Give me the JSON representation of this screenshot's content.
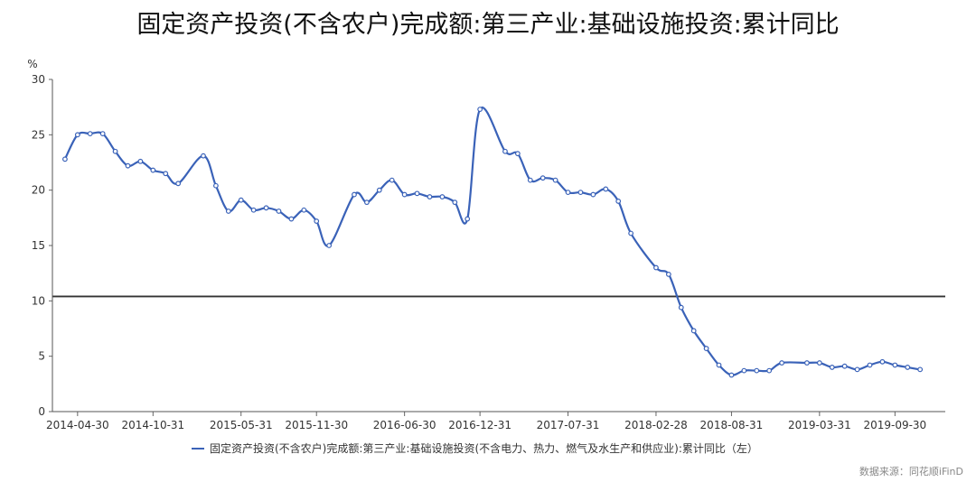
{
  "chart_data": {
    "type": "line",
    "title": "固定资产投资(不含农户)完成额:第三产业:基础设施投资:累计同比",
    "ylabel": "%",
    "ylim": [
      0,
      30
    ],
    "yticks": [
      0,
      5,
      10,
      15,
      20,
      25,
      30
    ],
    "x_tick_labels": [
      "2014-04-30",
      "2014-10-31",
      "2015-05-31",
      "2015-11-30",
      "2016-06-30",
      "2016-12-31",
      "2017-07-31",
      "2018-02-28",
      "2018-08-31",
      "2019-03-31",
      "2019-09-30"
    ],
    "legend_position": "bottom",
    "reference_line": 10.4,
    "series": [
      {
        "name": "固定资产投资(不含农户)完成额:第三产业:基础设施投资(不含电力、热力、燃气及水生产和供应业):累计同比（左）",
        "color": "#3a62b8",
        "x": [
          "2014-03",
          "2014-04",
          "2014-05",
          "2014-06",
          "2014-07",
          "2014-08",
          "2014-09",
          "2014-10",
          "2014-11",
          "2014-12",
          "2015-02",
          "2015-03",
          "2015-04",
          "2015-05",
          "2015-06",
          "2015-07",
          "2015-08",
          "2015-09",
          "2015-10",
          "2015-11",
          "2015-12",
          "2016-02",
          "2016-03",
          "2016-04",
          "2016-05",
          "2016-06",
          "2016-07",
          "2016-08",
          "2016-09",
          "2016-10",
          "2016-11",
          "2016-12",
          "2017-02",
          "2017-03",
          "2017-04",
          "2017-05",
          "2017-06",
          "2017-07",
          "2017-08",
          "2017-09",
          "2017-10",
          "2017-11",
          "2017-12",
          "2018-02",
          "2018-03",
          "2018-04",
          "2018-05",
          "2018-06",
          "2018-07",
          "2018-08",
          "2018-09",
          "2018-10",
          "2018-11",
          "2018-12",
          "2019-02",
          "2019-03",
          "2019-04",
          "2019-05",
          "2019-06",
          "2019-07",
          "2019-08",
          "2019-09",
          "2019-10",
          "2019-11"
        ],
        "values": [
          22.8,
          25.0,
          25.1,
          25.1,
          23.5,
          22.2,
          22.6,
          21.8,
          21.5,
          20.6,
          23.1,
          20.4,
          18.1,
          19.1,
          18.2,
          18.4,
          18.1,
          17.4,
          18.2,
          17.2,
          15.0,
          19.6,
          18.9,
          20.0,
          20.9,
          19.6,
          19.7,
          19.4,
          19.4,
          18.9,
          17.4,
          27.3,
          23.5,
          23.3,
          20.9,
          21.1,
          20.9,
          19.8,
          19.8,
          19.6,
          20.1,
          19.0,
          16.1,
          13.0,
          12.4,
          9.4,
          7.3,
          5.7,
          4.2,
          3.3,
          3.7,
          3.7,
          3.7,
          4.4,
          4.4,
          4.4,
          4.0,
          4.1,
          3.8,
          4.2,
          4.5,
          4.2,
          4.0,
          3.8
        ]
      }
    ]
  },
  "source_text": "数据来源：同花顺iFinD"
}
